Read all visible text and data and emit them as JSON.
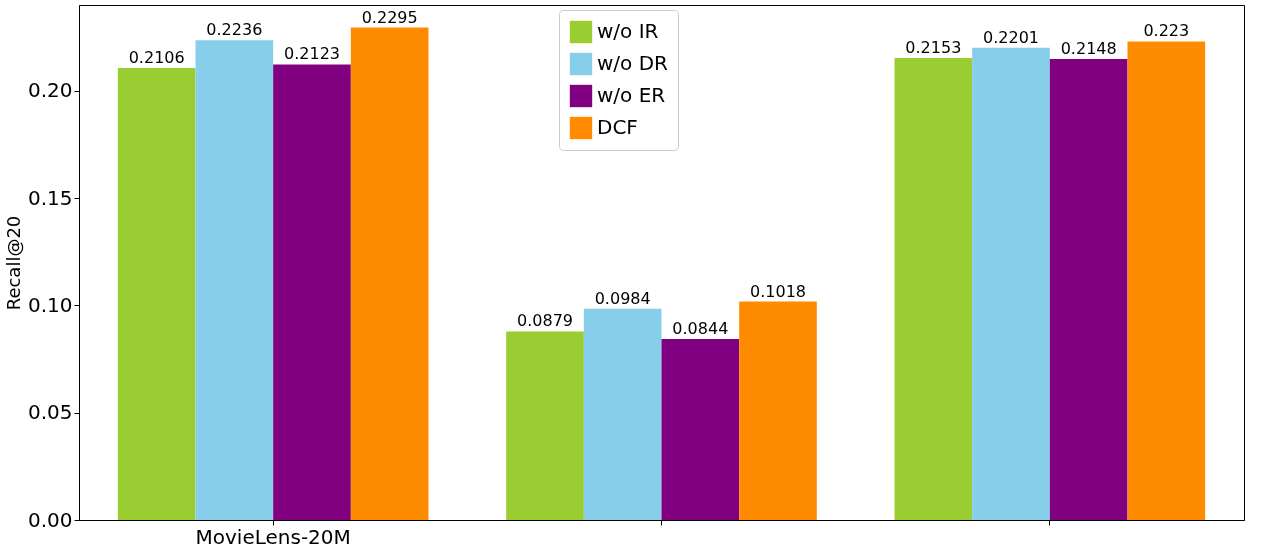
{
  "chart_data": {
    "type": "bar",
    "ylabel": "Recall@20",
    "categories": [
      "MovieLens-20M",
      null,
      null
    ],
    "series": [
      {
        "name": "w/o IR",
        "color": "#9acd32",
        "values": [
          0.2106,
          0.0879,
          0.2153
        ]
      },
      {
        "name": "w/o DR",
        "color": "#87ceeb",
        "values": [
          0.2236,
          0.0984,
          0.2201
        ]
      },
      {
        "name": "w/o ER",
        "color": "#800080",
        "values": [
          0.2123,
          0.0844,
          0.2148
        ]
      },
      {
        "name": "DCF",
        "color": "#ff8c00",
        "values": [
          0.2295,
          0.1018,
          0.223
        ]
      }
    ],
    "ylim": [
      0,
      0.24
    ],
    "yticks": [
      {
        "value": 0,
        "label": "0.00"
      },
      {
        "value": 0.05,
        "label": "0.05"
      },
      {
        "value": 0.1,
        "label": "0.10"
      },
      {
        "value": 0.15,
        "label": "0.15"
      },
      {
        "value": 0.2,
        "label": "0.20"
      }
    ],
    "data_labels": true,
    "legend": "top",
    "grid": false
  }
}
